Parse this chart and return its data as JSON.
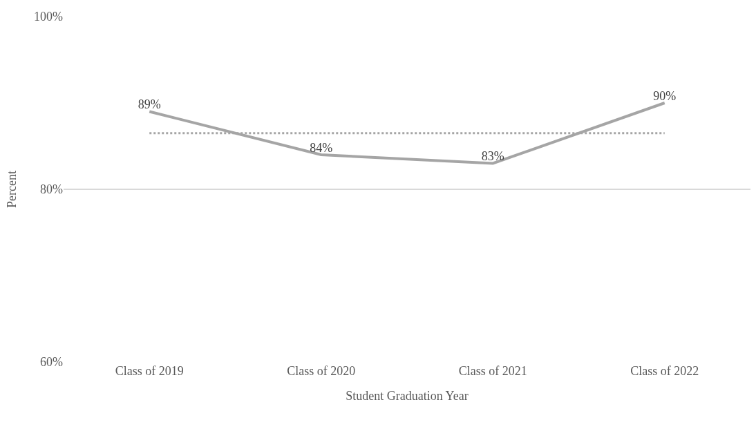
{
  "chart_data": {
    "type": "line",
    "xlabel": "Student Graduation Year",
    "ylabel": "Percent",
    "categories": [
      "Class of 2019",
      "Class of 2020",
      "Class of 2021",
      "Class of 2022"
    ],
    "series": [
      {
        "color": "#a5a5a5",
        "values": [
          89,
          84,
          83,
          90
        ],
        "value_labels": [
          "89%",
          "84%",
          "83%",
          "90%"
        ]
      }
    ],
    "ylim": [
      60,
      100
    ],
    "yticks": [
      {
        "value": 60,
        "label": "60%"
      },
      {
        "value": 80,
        "label": "80%"
      },
      {
        "value": 100,
        "label": "100%"
      }
    ],
    "grid": "y",
    "marker": "none",
    "line_style": "solid",
    "ref_lines": [
      {
        "axis": "y",
        "value": 86.5,
        "color": "#a5a5a5",
        "line_style": "dotted"
      }
    ]
  }
}
